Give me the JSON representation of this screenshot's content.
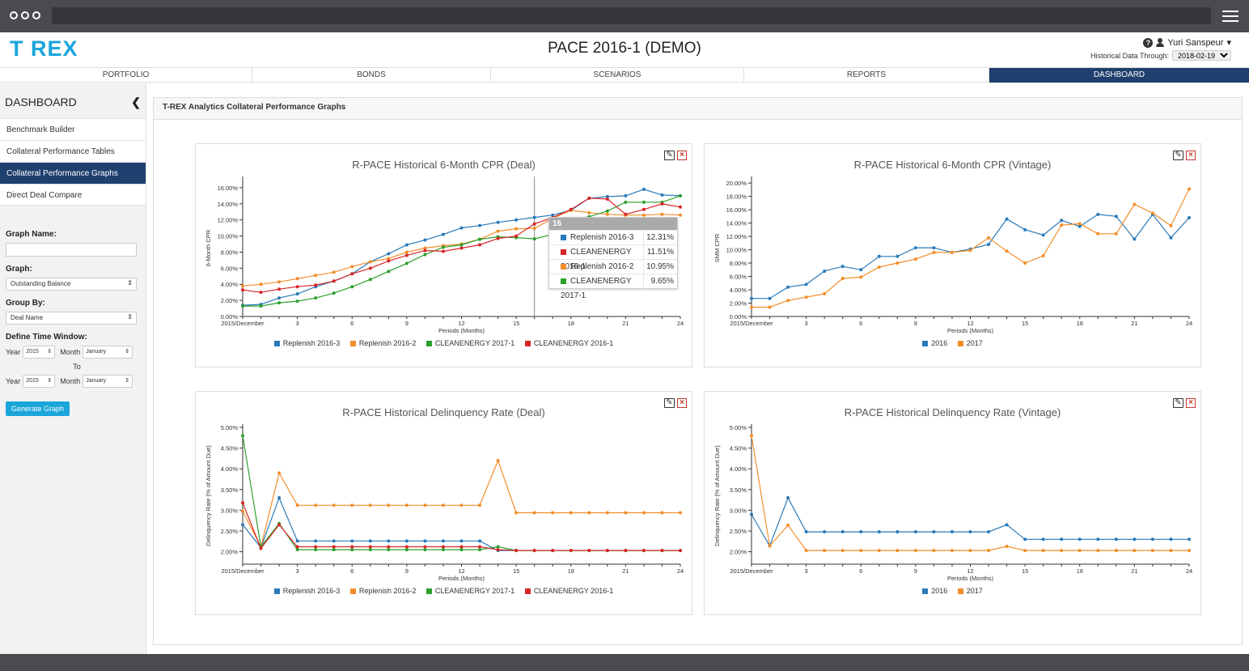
{
  "app": {
    "logo": "T REX",
    "title": "PACE 2016-1 (DEMO)",
    "user_name": "Yuri Sanspeur",
    "hist_label": "Historical Data Through:",
    "hist_date": "2018-02-19"
  },
  "tabs": [
    {
      "label": "PORTFOLIO",
      "active": false
    },
    {
      "label": "BONDS",
      "active": false
    },
    {
      "label": "SCENARIOS",
      "active": false
    },
    {
      "label": "REPORTS",
      "active": false
    },
    {
      "label": "DASHBOARD",
      "active": true
    }
  ],
  "sidebar": {
    "title": "DASHBOARD",
    "items": [
      {
        "label": "Benchmark Builder"
      },
      {
        "label": "Collateral Performance Tables"
      },
      {
        "label": "Collateral Performance Graphs"
      },
      {
        "label": "Direct Deal Compare"
      }
    ],
    "form": {
      "graph_name_label": "Graph Name:",
      "graph_name_value": "",
      "graph_label": "Graph:",
      "graph_value": "Outstanding Balance",
      "group_by_label": "Group By:",
      "group_by_value": "Deal Name",
      "time_window_label": "Define Time Window:",
      "year_label": "Year",
      "month_label": "Month",
      "year_from": "2015",
      "month_from": "January",
      "to_label": "To",
      "year_to": "2015",
      "month_to": "January",
      "generate_button": "Generate Graph"
    }
  },
  "main": {
    "header": "T-REX Analytics Collateral Performance Graphs"
  },
  "colors": {
    "blue": "#2a7ab9",
    "orange": "#f28e2b",
    "green": "#2ca02c",
    "red": "#d62728",
    "accent": "#1aa5db",
    "nav_active": "#1f3f6e"
  },
  "tooltip": {
    "period": "16",
    "rows": [
      {
        "name": "Replenish 2016-3",
        "value": "12.31%",
        "color": "#2a7ab9"
      },
      {
        "name": "CLEANENERGY 2016-1",
        "value": "11.51%",
        "color": "#d62728"
      },
      {
        "name": "Replenish 2016-2",
        "value": "10.95%",
        "color": "#f28e2b"
      },
      {
        "name": "CLEANENERGY 2017-1",
        "value": "9.65%",
        "color": "#2ca02c"
      }
    ]
  },
  "chart_data": [
    {
      "type": "line",
      "title": "R-PACE Historical 6-Month CPR (Deal)",
      "xlabel": "Periods (Months)",
      "ylabel": "6-Month CPR",
      "x_ticks": [
        "2015/December",
        "3",
        "6",
        "9",
        "12",
        "15",
        "18",
        "21",
        "24"
      ],
      "x": [
        0,
        1,
        2,
        3,
        4,
        5,
        6,
        7,
        8,
        9,
        10,
        11,
        12,
        13,
        14,
        15,
        16,
        17,
        18,
        19,
        20,
        21,
        22,
        23,
        24
      ],
      "ylim": [
        0,
        0.17
      ],
      "y_ticks": [
        "0.00%",
        "2.00%",
        "4.00%",
        "6.00%",
        "8.00%",
        "10.00%",
        "12.00%",
        "14.00%",
        "16.00%"
      ],
      "series": [
        {
          "name": "Replenish 2016-3",
          "color": "#2a7ab9",
          "values": [
            0.014,
            0.015,
            0.023,
            0.028,
            0.037,
            0.044,
            0.053,
            0.068,
            0.078,
            0.089,
            0.095,
            0.102,
            0.11,
            0.113,
            0.117,
            0.12,
            0.1231,
            0.126,
            0.132,
            0.147,
            0.149,
            0.15,
            0.158,
            0.151,
            0.15
          ]
        },
        {
          "name": "Replenish 2016-2",
          "color": "#f28e2b",
          "values": [
            0.038,
            0.04,
            0.043,
            0.047,
            0.051,
            0.055,
            0.062,
            0.068,
            0.072,
            0.08,
            0.085,
            0.088,
            0.09,
            0.096,
            0.106,
            0.109,
            0.1095,
            0.122,
            0.132,
            0.129,
            0.127,
            0.126,
            0.126,
            0.127,
            0.126
          ]
        },
        {
          "name": "CLEANENERGY 2017-1",
          "color": "#2ca02c",
          "values": [
            0.013,
            0.013,
            0.017,
            0.019,
            0.023,
            0.029,
            0.037,
            0.046,
            0.056,
            0.066,
            0.077,
            0.086,
            0.089,
            0.096,
            0.099,
            0.098,
            0.0965,
            0.102,
            0.12,
            0.124,
            0.131,
            0.142,
            0.142,
            0.142,
            0.15
          ]
        },
        {
          "name": "CLEANENERGY 2016-1",
          "color": "#d62728",
          "values": [
            0.033,
            0.03,
            0.034,
            0.037,
            0.039,
            0.044,
            0.053,
            0.06,
            0.069,
            0.076,
            0.082,
            0.081,
            0.085,
            0.089,
            0.097,
            0.1,
            0.1151,
            0.123,
            0.133,
            0.147,
            0.146,
            0.127,
            0.133,
            0.14,
            0.136
          ]
        }
      ]
    },
    {
      "type": "line",
      "title": "R-PACE Historical 6-Month CPR (Vintage)",
      "xlabel": "Periods (Months)",
      "ylabel": "SMM CPR",
      "x_ticks": [
        "2015/December",
        "3",
        "6",
        "9",
        "12",
        "15",
        "18",
        "21",
        "24"
      ],
      "x": [
        0,
        1,
        2,
        3,
        4,
        5,
        6,
        7,
        8,
        9,
        10,
        11,
        12,
        13,
        14,
        15,
        16,
        17,
        18,
        19,
        20,
        21,
        22,
        23,
        24
      ],
      "ylim": [
        0,
        0.205
      ],
      "y_ticks": [
        "0.00%",
        "2.00%",
        "4.00%",
        "6.00%",
        "8.00%",
        "10.00%",
        "12.00%",
        "14.00%",
        "16.00%",
        "18.00%",
        "20.00%"
      ],
      "series": [
        {
          "name": "2016",
          "color": "#2a7ab9",
          "values": [
            0.027,
            0.027,
            0.044,
            0.048,
            0.068,
            0.075,
            0.07,
            0.09,
            0.09,
            0.103,
            0.103,
            0.096,
            0.101,
            0.108,
            0.146,
            0.13,
            0.122,
            0.144,
            0.135,
            0.153,
            0.15,
            0.116,
            0.153,
            0.118,
            0.148
          ]
        },
        {
          "name": "2017",
          "color": "#f28e2b",
          "values": [
            0.014,
            0.014,
            0.024,
            0.029,
            0.034,
            0.057,
            0.059,
            0.074,
            0.08,
            0.086,
            0.096,
            0.096,
            0.099,
            0.118,
            0.098,
            0.08,
            0.091,
            0.137,
            0.139,
            0.124,
            0.124,
            0.168,
            0.155,
            0.136,
            0.191
          ]
        }
      ]
    },
    {
      "type": "line",
      "title": "R-PACE Historical Delinquency Rate (Deal)",
      "xlabel": "Periods (Months)",
      "ylabel": "Delinquency Rate (% of Amount Due)",
      "x_ticks": [
        "2015/December",
        "3",
        "6",
        "9",
        "12",
        "15",
        "18",
        "21",
        "24"
      ],
      "x": [
        0,
        1,
        2,
        3,
        4,
        5,
        6,
        7,
        8,
        9,
        10,
        11,
        12,
        13,
        14,
        15,
        16,
        17,
        18,
        19,
        20,
        21,
        22,
        23,
        24
      ],
      "ylim": [
        0.017,
        0.05
      ],
      "y_ticks": [
        "2.00%",
        "2.50%",
        "3.00%",
        "3.50%",
        "4.00%",
        "4.50%",
        "5.00%"
      ],
      "series": [
        {
          "name": "Replenish 2016-3",
          "color": "#2a7ab9",
          "values": [
            0.0265,
            0.021,
            0.033,
            0.0226,
            0.0226,
            0.0226,
            0.0226,
            0.0226,
            0.0226,
            0.0226,
            0.0226,
            0.0226,
            0.0226,
            0.0226,
            0.0203,
            0.0203,
            0.0203,
            0.0203,
            0.0203,
            0.0203,
            0.0203,
            0.0203,
            0.0203,
            0.0203,
            0.0203
          ]
        },
        {
          "name": "Replenish 2016-2",
          "color": "#f28e2b",
          "values": [
            0.0298,
            0.0212,
            0.039,
            0.0312,
            0.0312,
            0.0312,
            0.0312,
            0.0312,
            0.0312,
            0.0312,
            0.0312,
            0.0312,
            0.0312,
            0.0312,
            0.042,
            0.0294,
            0.0294,
            0.0294,
            0.0294,
            0.0294,
            0.0294,
            0.0294,
            0.0294,
            0.0294,
            0.0294
          ]
        },
        {
          "name": "CLEANENERGY 2017-1",
          "color": "#2ca02c",
          "values": [
            0.048,
            0.0212,
            0.0268,
            0.0205,
            0.0205,
            0.0205,
            0.0205,
            0.0205,
            0.0205,
            0.0205,
            0.0205,
            0.0205,
            0.0205,
            0.0205,
            0.0212,
            0.0203,
            0.0203,
            0.0203,
            0.0203,
            0.0203,
            0.0203,
            0.0203,
            0.0203,
            0.0203,
            0.0203
          ]
        },
        {
          "name": "CLEANENERGY 2016-1",
          "color": "#d62728",
          "values": [
            0.0318,
            0.0208,
            0.0265,
            0.0212,
            0.0212,
            0.0212,
            0.0212,
            0.0212,
            0.0212,
            0.0212,
            0.0212,
            0.0212,
            0.0212,
            0.0212,
            0.0205,
            0.0203,
            0.0203,
            0.0203,
            0.0203,
            0.0203,
            0.0203,
            0.0203,
            0.0203,
            0.0203,
            0.0203
          ]
        }
      ]
    },
    {
      "type": "line",
      "title": "R-PACE Historical Delinquency Rate (Vintage)",
      "xlabel": "Periods (Months)",
      "ylabel": "Delinquency Rate (% of Amount Due)",
      "x_ticks": [
        "2015/December",
        "3",
        "6",
        "9",
        "12",
        "15",
        "18",
        "21",
        "24"
      ],
      "x": [
        0,
        1,
        2,
        3,
        4,
        5,
        6,
        7,
        8,
        9,
        10,
        11,
        12,
        13,
        14,
        15,
        16,
        17,
        18,
        19,
        20,
        21,
        22,
        23,
        24
      ],
      "ylim": [
        0.017,
        0.05
      ],
      "y_ticks": [
        "2.00%",
        "2.50%",
        "3.00%",
        "3.50%",
        "4.00%",
        "4.50%",
        "5.00%"
      ],
      "series": [
        {
          "name": "2016",
          "color": "#2a7ab9",
          "values": [
            0.029,
            0.0214,
            0.033,
            0.0248,
            0.0248,
            0.0248,
            0.0248,
            0.0248,
            0.0248,
            0.0248,
            0.0248,
            0.0248,
            0.0248,
            0.0248,
            0.0265,
            0.023,
            0.023,
            0.023,
            0.023,
            0.023,
            0.023,
            0.023,
            0.023,
            0.023,
            0.023
          ]
        },
        {
          "name": "2017",
          "color": "#f28e2b",
          "values": [
            0.048,
            0.0214,
            0.0264,
            0.0203,
            0.0203,
            0.0203,
            0.0203,
            0.0203,
            0.0203,
            0.0203,
            0.0203,
            0.0203,
            0.0203,
            0.0203,
            0.0213,
            0.0203,
            0.0203,
            0.0203,
            0.0203,
            0.0203,
            0.0203,
            0.0203,
            0.0203,
            0.0203,
            0.0203
          ]
        }
      ]
    }
  ]
}
